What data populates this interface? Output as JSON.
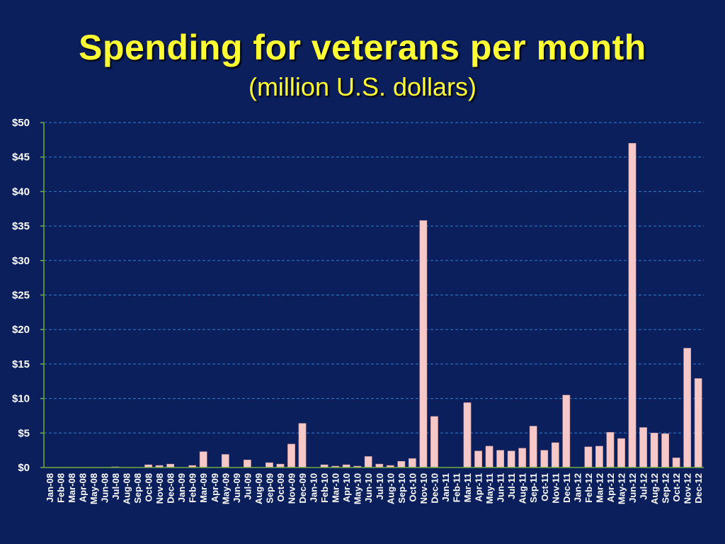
{
  "header": {
    "title": "Spending for veterans per month",
    "subtitle": "(million U.S. dollars)"
  },
  "colors": {
    "background": "#0b1f5c",
    "title": "#ffff33",
    "bar": "#f7c8c8",
    "grid": "#2f7fd0",
    "axis": "#6fae3a",
    "text": "#ffffff"
  },
  "chart_data": {
    "type": "bar",
    "title": "Spending for veterans per month",
    "subtitle": "(million U.S. dollars)",
    "xlabel": "",
    "ylabel": "",
    "ylim": [
      0,
      50
    ],
    "yticks": [
      "$0",
      "$5",
      "$10",
      "$15",
      "$20",
      "$25",
      "$30",
      "$35",
      "$40",
      "$45",
      "$50"
    ],
    "grid": true,
    "legend": "none",
    "categories": [
      "Jan-08",
      "Feb-08",
      "Mar-08",
      "Apr-08",
      "May-08",
      "Jun-08",
      "Jul-08",
      "Aug-08",
      "Sep-08",
      "Oct-08",
      "Nov-08",
      "Dec-08",
      "Jan-09",
      "Feb-09",
      "Mar-09",
      "Apr-09",
      "May-09",
      "Jun-09",
      "Jul-09",
      "Aug-09",
      "Sep-09",
      "Oct-09",
      "Nov-09",
      "Dec-09",
      "Jan-10",
      "Feb-10",
      "Mar-10",
      "Apr-10",
      "May-10",
      "Jun-10",
      "Jul-10",
      "Aug-10",
      "Sep-10",
      "Oct-10",
      "Nov-10",
      "Dec-10",
      "Jan-11",
      "Feb-11",
      "Mar-11",
      "Apr-11",
      "May-11",
      "Jun-11",
      "Jul-11",
      "Aug-11",
      "Sep-11",
      "Oct-11",
      "Nov-11",
      "Dec-11",
      "Jan-12",
      "Feb-12",
      "Mar-12",
      "Apr-12",
      "May-12",
      "Jun-12",
      "Jul-12",
      "Aug-12",
      "Sep-12",
      "Oct-12",
      "Nov-12",
      "Dec-12"
    ],
    "values": [
      0,
      0,
      0,
      0,
      0,
      0,
      0.1,
      0,
      0,
      0.4,
      0.3,
      0.5,
      0,
      0.3,
      2.3,
      0,
      1.9,
      0,
      1.1,
      0,
      0.7,
      0.5,
      3.4,
      6.4,
      0,
      0.4,
      0.2,
      0.4,
      0.2,
      1.6,
      0.5,
      0.3,
      0.9,
      1.3,
      35.8,
      7.4,
      0,
      0,
      9.4,
      2.4,
      3.1,
      2.5,
      2.4,
      2.8,
      6.0,
      2.5,
      3.6,
      10.5,
      0,
      3.0,
      3.1,
      5.1,
      4.2,
      47.0,
      5.8,
      5.0,
      4.9,
      1.4,
      17.3,
      12.9
    ]
  }
}
